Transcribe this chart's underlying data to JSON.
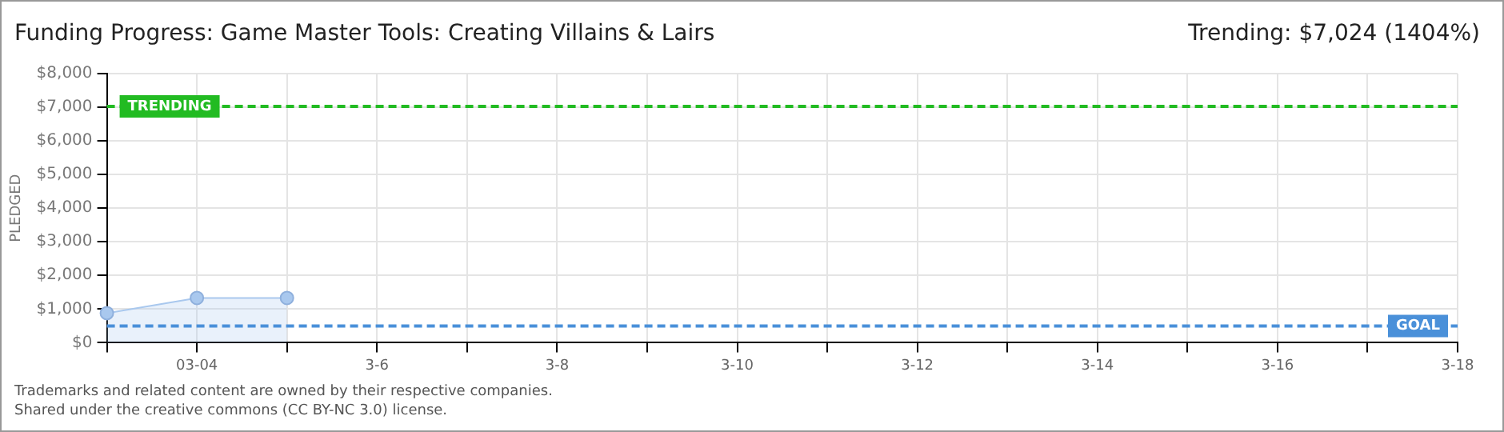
{
  "chart_data": {
    "type": "area",
    "title": "Funding Progress: Game Master Tools: Creating Villains & Lairs",
    "subtitle": "Trending: $7,024 (1404%)",
    "ylabel": "PLEDGED",
    "categories": [
      null,
      "03-04",
      null,
      "3-6",
      null,
      "3-8",
      null,
      "3-10",
      null,
      "3-12",
      null,
      "3-14",
      null,
      "3-16",
      null,
      "3-18"
    ],
    "values": [
      880,
      1330,
      1330,
      null,
      null,
      null,
      null,
      null,
      null,
      null,
      null,
      null,
      null,
      null,
      null,
      null
    ],
    "color": "#a9c8ee",
    "marker": "circle",
    "ylim": [
      0,
      8000
    ],
    "yticks": [
      {
        "value": 0,
        "label": "$0"
      },
      {
        "value": 1000,
        "label": "$1,000"
      },
      {
        "value": 2000,
        "label": "$2,000"
      },
      {
        "value": 3000,
        "label": "$3,000"
      },
      {
        "value": 4000,
        "label": "$4,000"
      },
      {
        "value": 5000,
        "label": "$5,000"
      },
      {
        "value": 6000,
        "label": "$6,000"
      },
      {
        "value": 7000,
        "label": "$7,000"
      },
      {
        "value": 8000,
        "label": "$8,000"
      }
    ],
    "grid": true,
    "ref_lines": [
      {
        "axis": "y",
        "value": 7024,
        "label": "TRENDING",
        "color": "#22bb22",
        "line_style": "dashed"
      },
      {
        "axis": "y",
        "value": 500,
        "label": "GOAL",
        "color": "#4a90d9",
        "line_style": "dashed"
      }
    ],
    "annotations": [
      "Trademarks and related content are owned by their respective companies.",
      "Shared under the creative commons (CC BY-NC 3.0) license."
    ]
  }
}
